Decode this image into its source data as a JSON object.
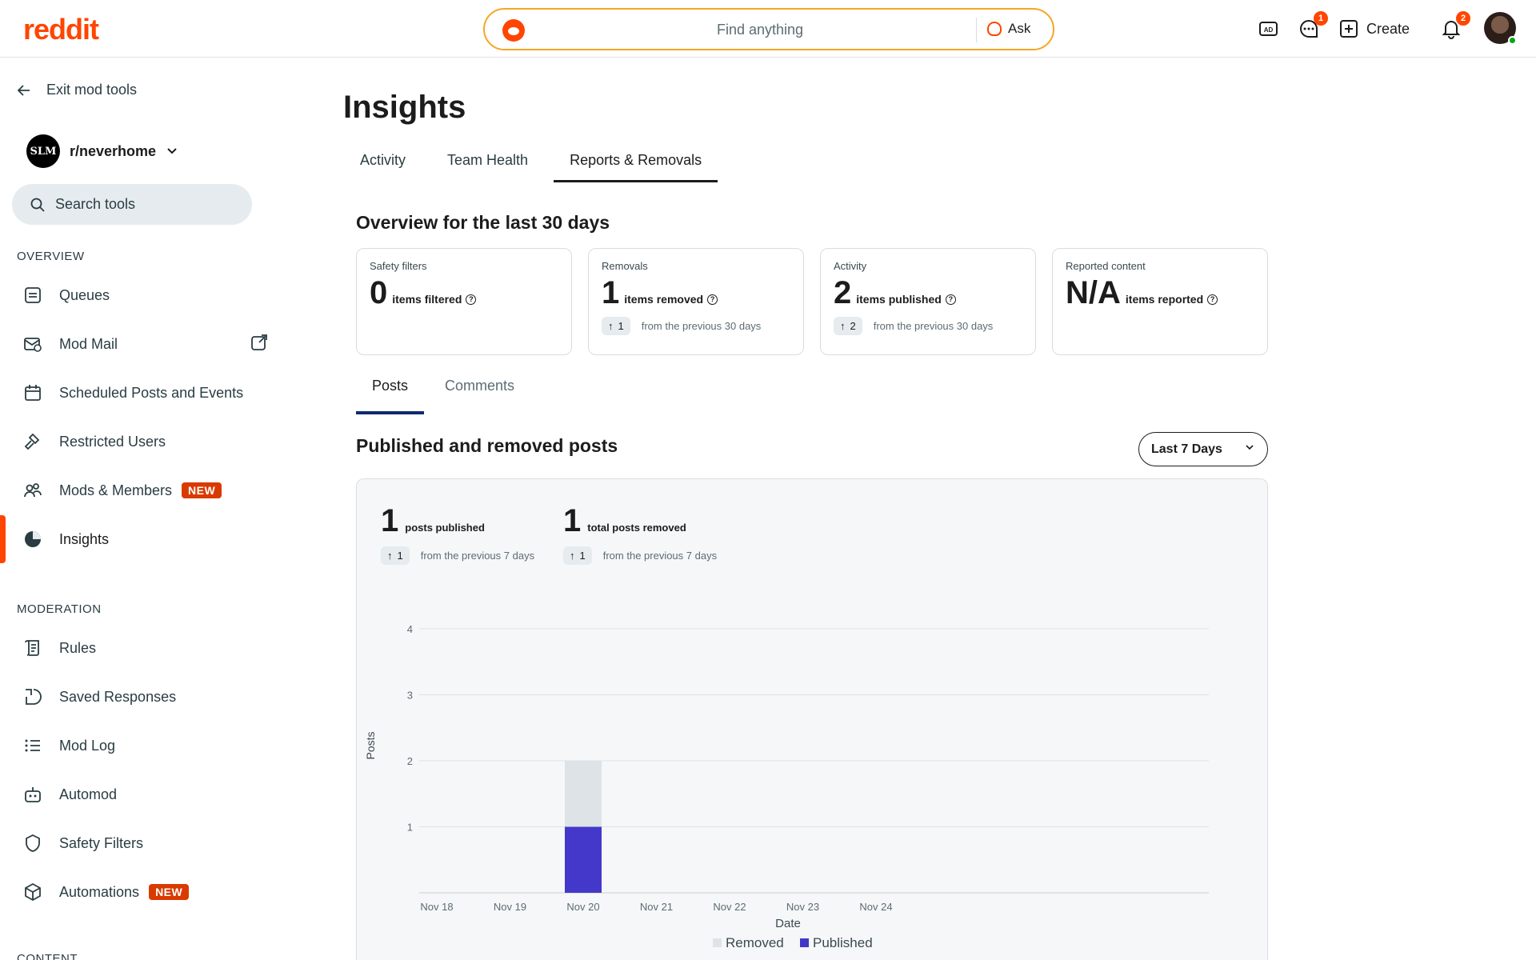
{
  "header": {
    "logo": "reddit",
    "search_placeholder": "Find anything",
    "ask_label": "Ask",
    "chat_badge": "1",
    "create_label": "Create",
    "notif_badge": "2"
  },
  "sidebar": {
    "exit_label": "Exit mod tools",
    "subreddit": "r/neverhome",
    "subreddit_avatar_text": "SLM",
    "search_placeholder": "Search tools",
    "overview_label": "OVERVIEW",
    "overview_items": [
      {
        "label": "Queues",
        "icon": "queue-icon"
      },
      {
        "label": "Mod Mail",
        "icon": "mail-icon"
      },
      {
        "label": "Scheduled Posts and Events",
        "icon": "calendar-icon"
      },
      {
        "label": "Restricted Users",
        "icon": "hammer-icon"
      },
      {
        "label": "Mods & Members",
        "icon": "members-icon",
        "badge": "NEW"
      },
      {
        "label": "Insights",
        "icon": "pie-icon"
      }
    ],
    "moderation_label": "MODERATION",
    "moderation_items": [
      {
        "label": "Rules",
        "icon": "rules-icon"
      },
      {
        "label": "Saved Responses",
        "icon": "chat-icon"
      },
      {
        "label": "Mod Log",
        "icon": "list-icon"
      },
      {
        "label": "Automod",
        "icon": "bot-icon"
      },
      {
        "label": "Safety Filters",
        "icon": "shield-icon"
      },
      {
        "label": "Automations",
        "icon": "cube-icon",
        "badge": "NEW"
      }
    ],
    "content_label": "CONTENT"
  },
  "main": {
    "title": "Insights",
    "tabs": [
      "Activity",
      "Team Health",
      "Reports & Removals"
    ],
    "active_tab": "Reports & Removals",
    "overview_title": "Overview for the last 30 days",
    "cards": [
      {
        "label": "Safety filters",
        "value": "0",
        "unit": "items filtered",
        "delta": null,
        "delta_text": null
      },
      {
        "label": "Removals",
        "value": "1",
        "unit": "items removed",
        "delta": "1",
        "delta_text": "from the previous 30 days"
      },
      {
        "label": "Activity",
        "value": "2",
        "unit": "items published",
        "delta": "2",
        "delta_text": "from the previous 30 days"
      },
      {
        "label": "Reported content",
        "value": "N/A",
        "unit": "items reported",
        "delta": null,
        "delta_text": null
      }
    ],
    "subtabs": [
      "Posts",
      "Comments"
    ],
    "chart_title": "Published and removed posts",
    "range_label": "Last 7 Days",
    "stats": [
      {
        "value": "1",
        "unit": "posts published",
        "delta": "1",
        "delta_text": "from the previous 7 days"
      },
      {
        "value": "1",
        "unit": "total posts removed",
        "delta": "1",
        "delta_text": "from the previous 7 days"
      }
    ]
  },
  "colors": {
    "brand": "#ff4500",
    "published": "#4338c9",
    "removed": "#dde3e7"
  },
  "chart_data": {
    "type": "bar",
    "stacked": true,
    "categories": [
      "Nov 18",
      "Nov 19",
      "Nov 20",
      "Nov 21",
      "Nov 22",
      "Nov 23",
      "Nov 24"
    ],
    "series": [
      {
        "name": "Published",
        "values": [
          0,
          0,
          1,
          0,
          0,
          0,
          0
        ]
      },
      {
        "name": "Removed",
        "values": [
          0,
          0,
          1,
          0,
          0,
          0,
          0
        ]
      }
    ],
    "xlabel": "Date",
    "ylabel": "Posts",
    "ylim": [
      0,
      4
    ],
    "yticks": [
      1,
      2,
      3,
      4
    ],
    "grid": true,
    "legend": [
      "Removed",
      "Published"
    ],
    "legend_position": "bottom"
  }
}
